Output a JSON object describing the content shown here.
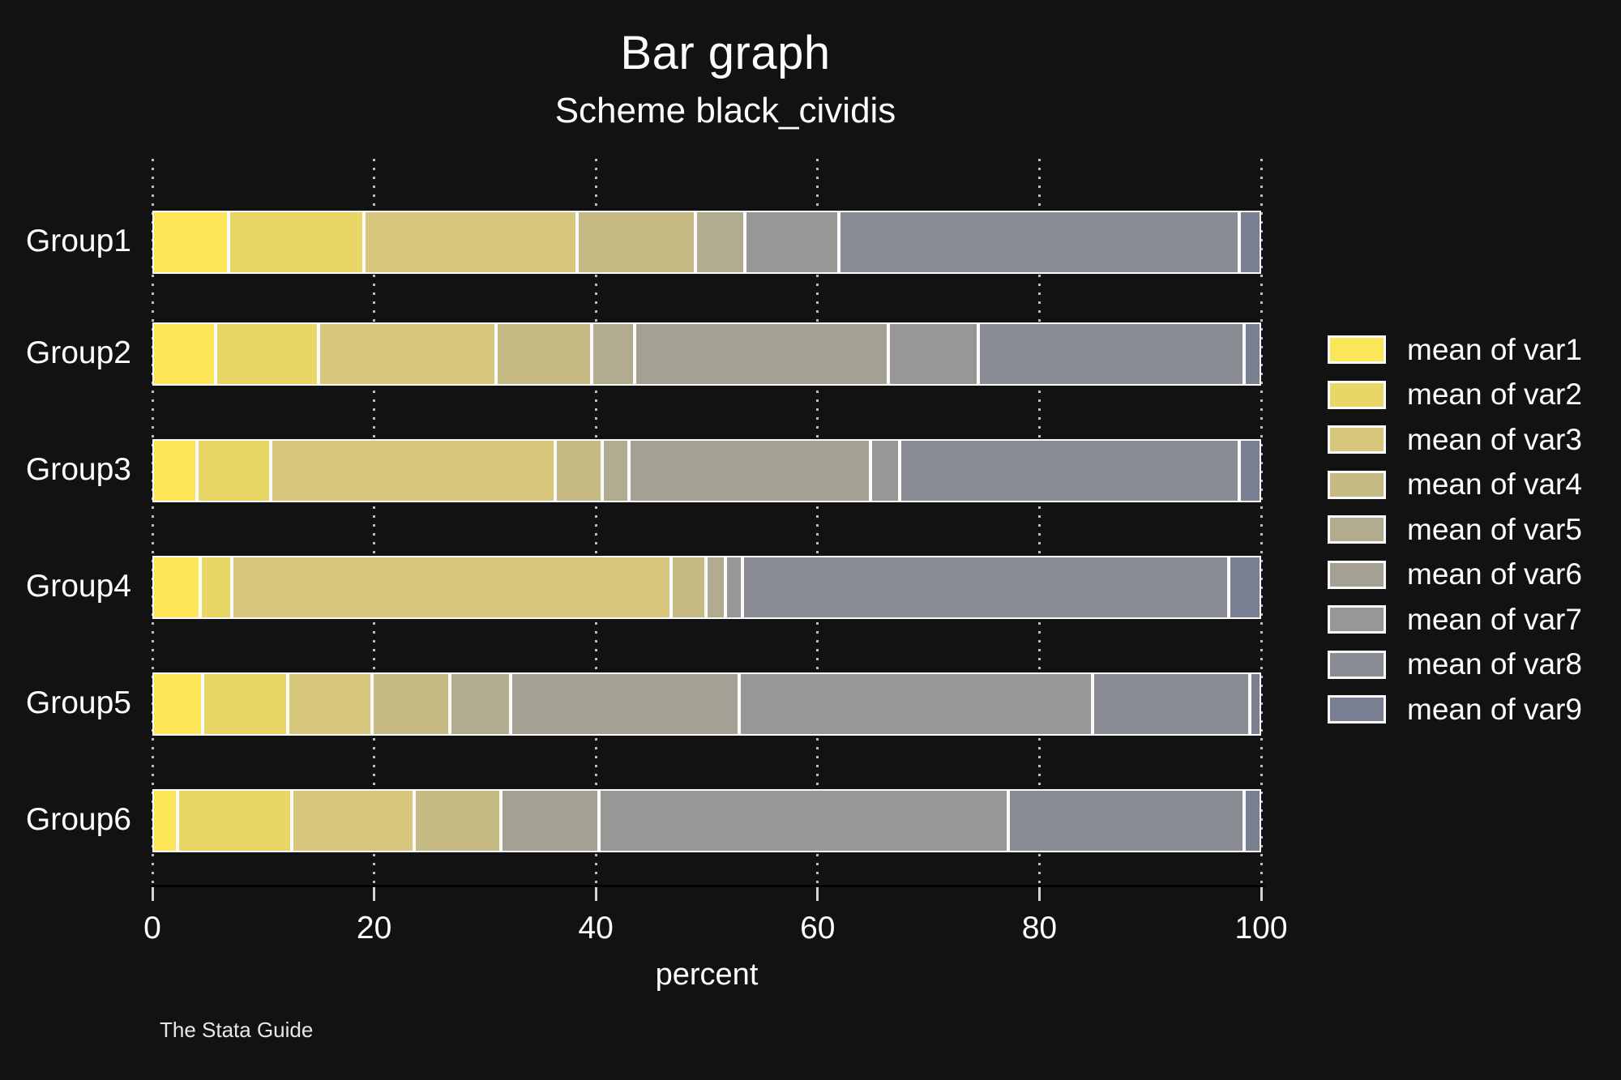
{
  "title": "Bar graph",
  "subtitle": "Scheme black_cividis",
  "footer": "The Stata Guide",
  "chart_data": {
    "type": "bar",
    "orientation": "horizontal",
    "stacked": true,
    "title": "Bar graph",
    "subtitle": "Scheme black_cividis",
    "xlabel": "percent",
    "xlim": [
      0,
      100
    ],
    "xticks": [
      0,
      20,
      40,
      60,
      80,
      100
    ],
    "grid": "dotted-vertical-gridlines",
    "legend_position": "right",
    "background_color": "#121212",
    "bar_outline_color": "#fafafa",
    "categories": [
      "Group1",
      "Group2",
      "Group3",
      "Group4",
      "Group5",
      "Group6"
    ],
    "series": [
      {
        "name": "mean of var1",
        "color": "#fbe65a",
        "values": [
          6.9,
          5.7,
          4.0,
          4.3,
          4.5,
          2.3
        ]
      },
      {
        "name": "mean of var2",
        "color": "#e8d667",
        "values": [
          12.2,
          9.3,
          6.7,
          2.9,
          7.7,
          10.3
        ]
      },
      {
        "name": "mean of var3",
        "color": "#d6c77d",
        "values": [
          19.2,
          16.0,
          25.6,
          39.6,
          7.6,
          11.0
        ]
      },
      {
        "name": "mean of var4",
        "color": "#c6ba84",
        "values": [
          10.7,
          8.6,
          4.3,
          3.1,
          7.0,
          7.8
        ]
      },
      {
        "name": "mean of var5",
        "color": "#b1ab8f",
        "values": [
          4.4,
          3.9,
          2.4,
          1.8,
          5.5,
          0
        ]
      },
      {
        "name": "mean of var6",
        "color": "#a4a093",
        "values": [
          0,
          22.9,
          21.8,
          0,
          20.6,
          8.9
        ]
      },
      {
        "name": "mean of var7",
        "color": "#989795",
        "values": [
          8.5,
          8.1,
          2.6,
          1.5,
          31.9,
          36.9
        ]
      },
      {
        "name": "mean of var8",
        "color": "#8a8c93",
        "values": [
          36.1,
          24.0,
          30.6,
          43.9,
          14.2,
          21.3
        ]
      },
      {
        "name": "mean of var9",
        "color": "#7a7f92",
        "values": [
          2.0,
          1.5,
          2.0,
          2.9,
          1.0,
          1.5
        ]
      }
    ]
  }
}
